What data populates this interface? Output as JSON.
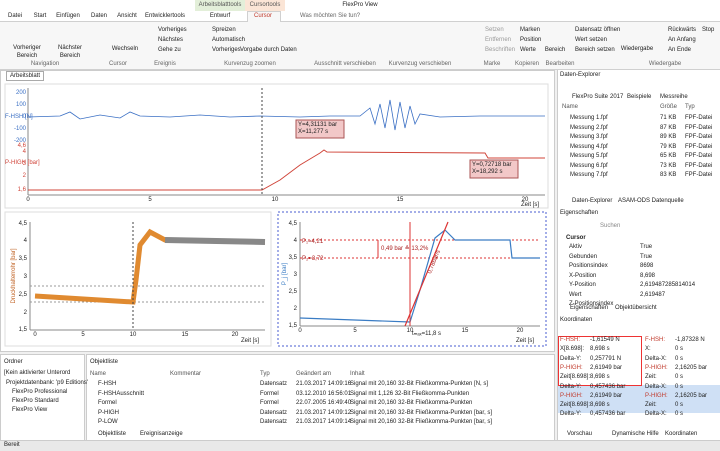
{
  "title_bar": {
    "app_title": "FlexPro View",
    "context_tabs": [
      "Arbeitsblatttools",
      "Cursortools"
    ]
  },
  "ribbon": {
    "tabs": [
      "Datei",
      "Start",
      "Einfügen",
      "Daten",
      "Ansicht",
      "Entwicklertools",
      "Entwurf",
      "Cursor"
    ],
    "search": "Was möchten Sie tun?",
    "buttons": [
      "Vorheriger Bereich",
      "Nächster Bereich",
      "Wechseln",
      "Vorheriges",
      "Nächstes",
      "Gehe zu",
      "Spreizen",
      "Automatisch",
      "Vorheriges",
      "Vorgabe durch Daten",
      "Setzen",
      "Entfernen",
      "Beschriften",
      "Marken",
      "Position",
      "Werte",
      "Bereich",
      "Datensatz öffnen",
      "Wert setzen",
      "Bereich setzen",
      "Wiedergabe",
      "Rückwärts",
      "Stop",
      "An Anfang",
      "An Ende"
    ],
    "groups": [
      "Navigation",
      "Cursor",
      "Ereignis",
      "Kurvenzug zoomen",
      "Ausschnitt verschieben",
      "Kurvenzug verschieben",
      "Marke",
      "Kopieren",
      "Bearbeiten",
      "Wiedergabe"
    ]
  },
  "worksheet": {
    "tab": "Arbeitsblatt",
    "top_chart": {
      "y1_label": "F-HSH [N]",
      "y1_ticks": [
        "200",
        "100",
        "0",
        "-100",
        "-200"
      ],
      "y2_label": "P-HIGH [bar]",
      "y2_ticks": [
        "4,6",
        "4",
        "3",
        "2",
        "1,6"
      ],
      "x_ticks": [
        "0",
        "5",
        "10",
        "15",
        "20"
      ],
      "x_label": "Zeit [s]",
      "cursor_1": [
        "Y=4,31131 bar",
        "X=11,277 s"
      ],
      "cursor_2": [
        "Y=0,72718 bar",
        "X=18,292 s"
      ]
    },
    "left_chart": {
      "y_label": "Druckhalterrohr [bar]",
      "y_ticks": [
        "4,5",
        "4",
        "3,5",
        "3",
        "2,5",
        "2",
        "1,5"
      ],
      "x_ticks": [
        "0",
        "5",
        "10",
        "15",
        "20"
      ],
      "x_label": "Zeit [s]"
    },
    "right_chart": {
      "y_label": "P_j [bar]",
      "y_ticks": [
        "4,5",
        "4",
        "3,5",
        "3",
        "2,5",
        "2",
        "1,5"
      ],
      "x_ticks": [
        "0",
        "5",
        "10",
        "15",
        "20"
      ],
      "x_label": "Zeit [s]",
      "p1": "P₁=4,21",
      "p2": "P₂=3,72",
      "delta": "0,49 bar ≙ 13,2%",
      "slope": "0,78bar/s",
      "tmax": "tₘₐₓ=11,8 s"
    }
  },
  "explorer": {
    "title": "Daten-Explorer",
    "path": [
      "FlexPro Suite",
      "2017",
      "Beispiele",
      "Messreihe"
    ],
    "columns": [
      "Name",
      "Größe",
      "Typ"
    ],
    "rows": [
      [
        "Messung 1.fpf",
        "71 KB",
        "FPF-Datei"
      ],
      [
        "Messung 2.fpf",
        "87 KB",
        "FPF-Datei"
      ],
      [
        "Messung 3.fpf",
        "89 KB",
        "FPF-Datei"
      ],
      [
        "Messung 4.fpf",
        "79 KB",
        "FPF-Datei"
      ],
      [
        "Messung 5.fpf",
        "65 KB",
        "FPF-Datei"
      ],
      [
        "Messung 6.fpf",
        "73 KB",
        "FPF-Datei"
      ],
      [
        "Messung 7.fpf",
        "83 KB",
        "FPF-Datei"
      ]
    ],
    "tabs": [
      "Daten-Explorer",
      "ASAM-ODS Datenquelle"
    ]
  },
  "properties": {
    "title": "Eigenschaften",
    "search": "Suchen",
    "section": "Cursor",
    "rows": [
      [
        "Aktiv",
        "True"
      ],
      [
        "Gebunden",
        "True"
      ],
      [
        "Positionsindex",
        "8698"
      ],
      [
        "X-Position",
        "8,698"
      ],
      [
        "Y-Position",
        "2,619487285814014"
      ],
      [
        "Wert",
        "2,619487"
      ],
      [
        "Z-Positionsindex"
      ]
    ],
    "tabs": [
      "Eigenschaften",
      "Objektübersicht"
    ]
  },
  "coordinates": {
    "title": "Koordinaten",
    "left": [
      [
        "F-HSH:",
        "-1,61549 N"
      ],
      [
        "X[8.698]:",
        "8,698 s"
      ],
      [
        "Delta-Y:",
        "0,257791 N"
      ],
      [
        "P-HIGH:",
        "2,61949 bar"
      ],
      [
        "Zeit[8.698]:",
        "8,698 s"
      ],
      [
        "Delta-Y:",
        "0,457436 bar"
      ],
      [
        "P-HIGH:",
        "2,61949 bar"
      ],
      [
        "Zeit[8.698]:",
        "8,698 s"
      ],
      [
        "Delta-Y:",
        "0,457436 bar"
      ]
    ],
    "right": [
      [
        "F-HSH:",
        "-1,87328 N"
      ],
      [
        "X:",
        "0 s"
      ],
      [
        "Delta-X:",
        "0 s"
      ],
      [
        "P-HIGH:",
        "2,16205 bar"
      ],
      [
        "Zeit:",
        "0 s"
      ],
      [
        "Delta-X:",
        "0 s"
      ],
      [
        "P-HIGH:",
        "2,16205 bar"
      ],
      [
        "Zeit:",
        "0 s"
      ],
      [
        "Delta-X:",
        "0 s"
      ]
    ],
    "tabs": [
      "Vorschau",
      "Dynamische Hilfe",
      "Koordinaten"
    ]
  },
  "folders": {
    "title": "Ordner",
    "filter": "[Kein aktivierter Unterord",
    "tree": [
      "Projektdatenbank: 'p9 Editions'",
      "FlexPro Professional",
      "FlexPro Standard",
      "FlexPro View"
    ]
  },
  "object_list": {
    "title": "Objektliste",
    "columns": [
      "Name",
      "Kommentar",
      "Typ",
      "Geändert am",
      "Inhalt"
    ],
    "rows": [
      [
        "F-HSH",
        "",
        "Datensatz",
        "21.03.2017 14:09:16",
        "Signal mit 20,160 32-Bit Fließkomma-Punkten [N, s]"
      ],
      [
        "F-HSHAusschnitt",
        "",
        "Formel",
        "03.12.2010 16:56:01",
        "Signal mit 1,126 32-Bit Fließkomma-Punkten"
      ],
      [
        "Formel",
        "",
        "Formel",
        "22.07.2005 16:49:40",
        "Signal mit 20,160 32-Bit Fließkomma-Punkten"
      ],
      [
        "P-HIGH",
        "",
        "Datensatz",
        "21.03.2017 14:09:12",
        "Signal mit 20,160 32-Bit Fließkomma-Punkten [bar, s]"
      ],
      [
        "P-LOW",
        "",
        "Datensatz",
        "21.03.2017 14:09:14",
        "Signal mit 20,160 32-Bit Fließkomma-Punkten [bar, s]"
      ]
    ],
    "tabs": [
      "Objektliste",
      "Ereignisanzeige"
    ]
  },
  "status": "Bereit"
}
